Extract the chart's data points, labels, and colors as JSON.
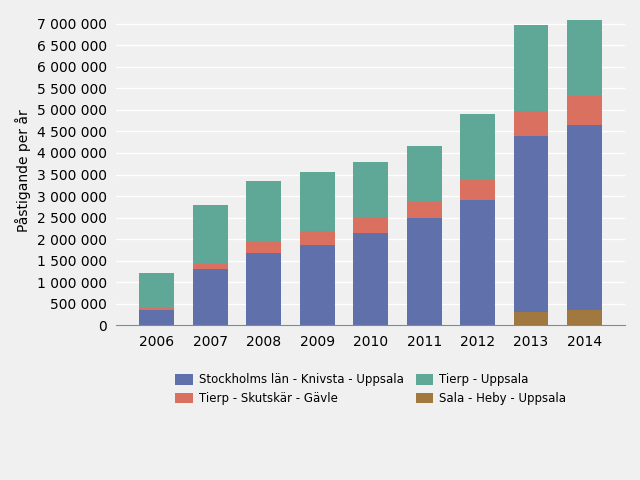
{
  "years": [
    2006,
    2007,
    2008,
    2009,
    2010,
    2011,
    2012,
    2013,
    2014
  ],
  "series_order": [
    "Sala - Heby - Uppsala",
    "Stockholms län - Knivsta - Uppsala",
    "Tierp - Skutskär - Gävle",
    "Tierp - Uppsala"
  ],
  "series": {
    "Stockholms län - Knivsta - Uppsala": [
      350000,
      1300000,
      1680000,
      1870000,
      2150000,
      2500000,
      2900000,
      4100000,
      4300000
    ],
    "Tierp - Skutskär - Gävle": [
      50000,
      130000,
      280000,
      320000,
      370000,
      370000,
      480000,
      580000,
      680000
    ],
    "Tierp - Uppsala": [
      820000,
      1370000,
      1390000,
      1360000,
      1270000,
      1280000,
      1530000,
      1980000,
      1750000
    ],
    "Sala - Heby - Uppsala": [
      0,
      0,
      0,
      0,
      0,
      0,
      0,
      300000,
      350000
    ]
  },
  "colors": {
    "Stockholms län - Knivsta - Uppsala": "#6070aa",
    "Tierp - Skutskär - Gävle": "#d97060",
    "Tierp - Uppsala": "#5fa898",
    "Sala - Heby - Uppsala": "#a07840"
  },
  "legend_order": [
    "Stockholms län - Knivsta - Uppsala",
    "Tierp - Skutskär - Gävle",
    "Tierp - Uppsala",
    "Sala - Heby - Uppsala"
  ],
  "ylabel": "Påstigande per år",
  "ylim": [
    0,
    7200000
  ],
  "ytick_step": 500000,
  "background_color": "#f0f0f0",
  "grid_color": "#ffffff",
  "bar_width": 0.65
}
